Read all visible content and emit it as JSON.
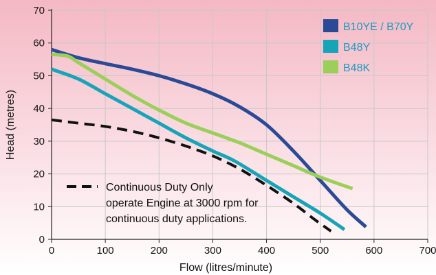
{
  "chart_data": {
    "type": "line",
    "title": "",
    "xlabel": "Flow (litres/minute)",
    "ylabel": "Head (metres)",
    "xlim": [
      0,
      700
    ],
    "ylim": [
      0,
      70
    ],
    "xticks": [
      0,
      100,
      200,
      300,
      400,
      500,
      600,
      700
    ],
    "yticks": [
      0,
      10,
      20,
      30,
      40,
      50,
      60,
      70
    ],
    "grid": true,
    "legend_position": "top-right",
    "series": [
      {
        "name": "B10YE / B70Y",
        "color": "#2b4a96",
        "style": "solid",
        "points": [
          [
            0,
            58
          ],
          [
            50,
            55.5
          ],
          [
            100,
            53.7
          ],
          [
            150,
            52
          ],
          [
            200,
            50
          ],
          [
            250,
            47.5
          ],
          [
            300,
            44.5
          ],
          [
            350,
            40.5
          ],
          [
            400,
            35
          ],
          [
            450,
            27
          ],
          [
            500,
            18
          ],
          [
            550,
            9
          ],
          [
            585,
            3.8
          ]
        ]
      },
      {
        "name": "B48Y",
        "color": "#18a4b8",
        "style": "solid",
        "points": [
          [
            0,
            52
          ],
          [
            50,
            49
          ],
          [
            100,
            44.5
          ],
          [
            150,
            40
          ],
          [
            200,
            35.5
          ],
          [
            250,
            31
          ],
          [
            300,
            27
          ],
          [
            340,
            24
          ],
          [
            400,
            18
          ],
          [
            450,
            13
          ],
          [
            500,
            8
          ],
          [
            545,
            3
          ]
        ]
      },
      {
        "name": "B48K",
        "color": "#9bcf5a",
        "style": "solid",
        "points": [
          [
            0,
            56.5
          ],
          [
            30,
            56
          ],
          [
            50,
            54
          ],
          [
            100,
            49
          ],
          [
            150,
            44
          ],
          [
            200,
            39.5
          ],
          [
            250,
            35.5
          ],
          [
            300,
            32.5
          ],
          [
            350,
            29.5
          ],
          [
            400,
            26
          ],
          [
            450,
            22.5
          ],
          [
            500,
            19
          ],
          [
            560,
            15.5
          ]
        ]
      },
      {
        "name": "",
        "color": "#111111",
        "style": "dashed",
        "points": [
          [
            0,
            36.5
          ],
          [
            50,
            35.5
          ],
          [
            100,
            34.5
          ],
          [
            150,
            33
          ],
          [
            200,
            31
          ],
          [
            250,
            28.5
          ],
          [
            300,
            25.5
          ],
          [
            350,
            21.5
          ],
          [
            400,
            16.5
          ],
          [
            450,
            11
          ],
          [
            490,
            6
          ],
          [
            520,
            2.5
          ]
        ]
      }
    ],
    "legend": [
      {
        "label": "B10YE / B70Y",
        "color": "#2b4a96",
        "text_color": "#1a9bc2"
      },
      {
        "label": "B48Y",
        "color": "#18a4b8",
        "text_color": "#1a9bc2"
      },
      {
        "label": "B48K",
        "color": "#9bcf5a",
        "text_color": "#1a9bc2"
      }
    ],
    "annotation": {
      "lines": [
        "Continuous Duty Only",
        "operate Engine at 3000 rpm for",
        "continuous duty applications."
      ]
    },
    "colors": {
      "background_top": "#f4b8c4",
      "background_bottom": "#ffffff",
      "grid": "#c8c8c8",
      "axis": "#222222"
    }
  }
}
